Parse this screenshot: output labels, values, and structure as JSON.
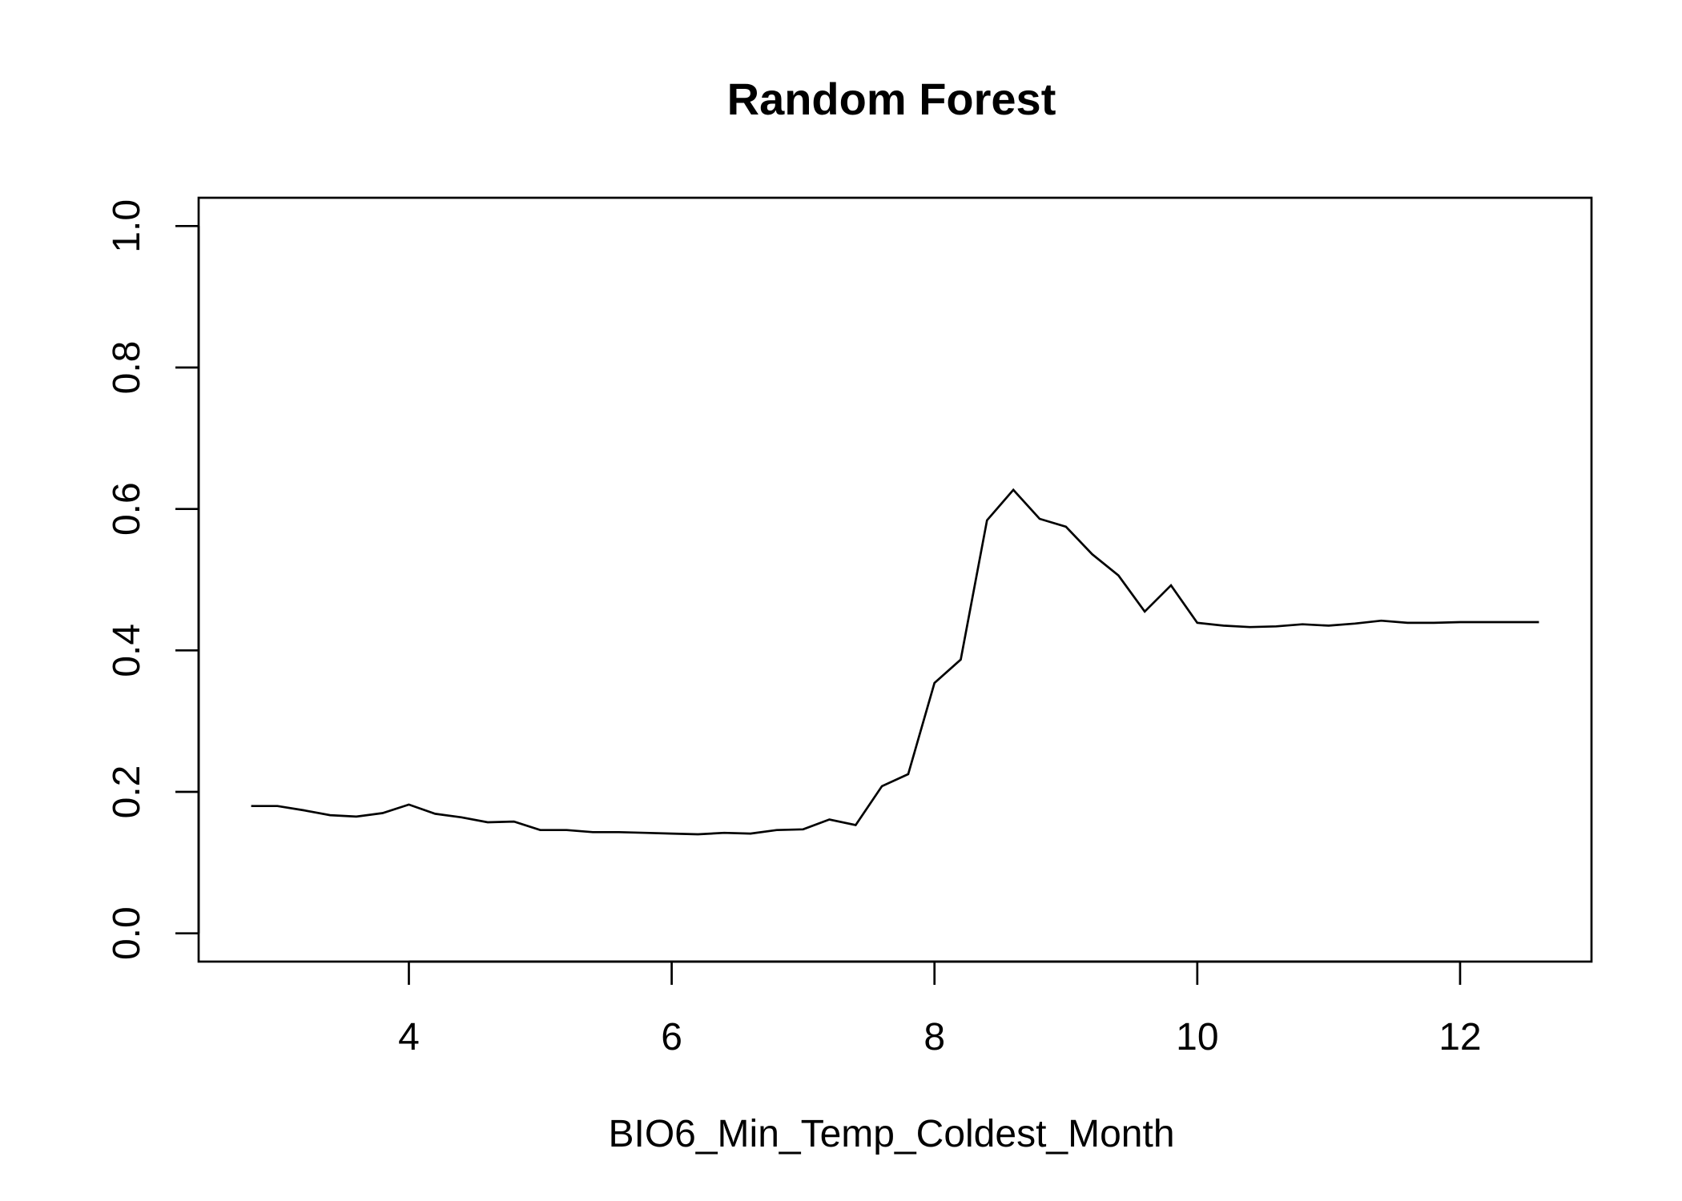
{
  "chart_data": {
    "type": "line",
    "title": "Random Forest",
    "xlabel": "BIO6_Min_Temp_Coldest_Month",
    "ylabel": "",
    "xlim": [
      2.4,
      13.0
    ],
    "ylim": [
      -0.04,
      1.04
    ],
    "x_ticks": [
      4,
      6,
      8,
      10,
      12
    ],
    "x_tick_labels": [
      "4",
      "6",
      "8",
      "10",
      "12"
    ],
    "y_ticks": [
      0.0,
      0.2,
      0.4,
      0.6,
      0.8,
      1.0
    ],
    "y_tick_labels": [
      "0.0",
      "0.2",
      "0.4",
      "0.6",
      "0.8",
      "1.0"
    ],
    "grid": false,
    "series": [
      {
        "x": [
          2.8,
          3.0,
          3.2,
          3.4,
          3.6,
          3.8,
          4.0,
          4.2,
          4.4,
          4.6,
          4.8,
          5.0,
          5.2,
          5.4,
          5.6,
          5.8,
          6.0,
          6.2,
          6.4,
          6.6,
          6.8,
          7.0,
          7.2,
          7.4,
          7.6,
          7.8,
          8.0,
          8.2,
          8.4,
          8.6,
          8.8,
          9.0,
          9.2,
          9.4,
          9.6,
          9.8,
          10.0,
          10.2,
          10.4,
          10.6,
          10.8,
          11.0,
          11.2,
          11.4,
          11.6,
          11.8,
          12.0,
          12.2,
          12.4,
          12.6
        ],
        "values": [
          0.18,
          0.18,
          0.174,
          0.167,
          0.165,
          0.17,
          0.182,
          0.169,
          0.164,
          0.157,
          0.158,
          0.146,
          0.146,
          0.143,
          0.143,
          0.142,
          0.141,
          0.14,
          0.142,
          0.141,
          0.146,
          0.147,
          0.161,
          0.153,
          0.208,
          0.225,
          0.354,
          0.387,
          0.584,
          0.627,
          0.586,
          0.575,
          0.536,
          0.506,
          0.455,
          0.492,
          0.439,
          0.435,
          0.433,
          0.434,
          0.437,
          0.435,
          0.438,
          0.442,
          0.439,
          0.439,
          0.44,
          0.44,
          0.44,
          0.44
        ]
      }
    ]
  }
}
